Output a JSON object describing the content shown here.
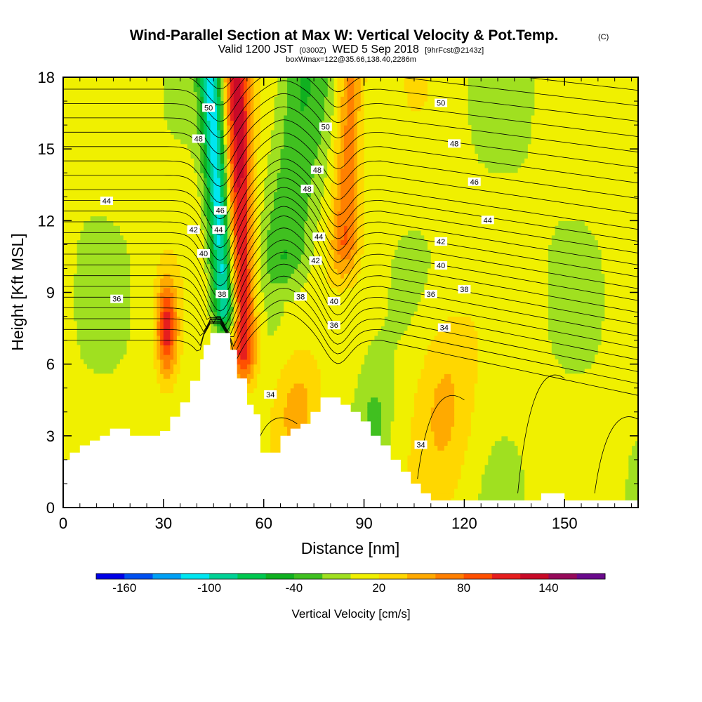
{
  "chart_data": {
    "type": "heatmap",
    "title": "Wind-Parallel Section at Max W: Vertical Velocity & Pot.Temp.",
    "title_mark": "(C)",
    "subtitle_parts": [
      "Valid 1200 JST",
      "(0300Z)",
      "WED 5 Sep 2018",
      "[9hrFcst@2143z]"
    ],
    "subtitle2": "boxWmax=122@35.66,138.40,2286m",
    "xlabel": "Distance [nm]",
    "ylabel": "Height [Kft MSL]",
    "xlim": [
      0,
      172
    ],
    "ylim": [
      0,
      18
    ],
    "xticks": [
      "0",
      "30",
      "60",
      "90",
      "120",
      "150"
    ],
    "xtick_values": [
      0,
      30,
      60,
      90,
      120,
      150
    ],
    "yticks": [
      "0",
      "3",
      "6",
      "9",
      "12",
      "15",
      "18"
    ],
    "ytick_values": [
      0,
      3,
      6,
      9,
      12,
      15,
      18
    ],
    "colorbar": {
      "title": "Vertical Velocity [cm/s]",
      "min": -180,
      "max": 180,
      "step": 20,
      "tick_labels": [
        "-160",
        "-100",
        "-40",
        "20",
        "80",
        "140"
      ],
      "tick_values": [
        -160,
        -100,
        -40,
        20,
        80,
        140
      ],
      "colors": [
        "#0000e6",
        "#0050f0",
        "#00a0f5",
        "#00e6f0",
        "#00d296",
        "#00c850",
        "#10b020",
        "#40c020",
        "#a0e020",
        "#f0f000",
        "#ffd700",
        "#ffaa00",
        "#ff8000",
        "#ff5000",
        "#e61e1e",
        "#c80a28",
        "#960a5a",
        "#6a0a8c"
      ]
    },
    "theta_contour_labels": [
      "34",
      "36",
      "38",
      "40",
      "42",
      "44",
      "46",
      "48",
      "50"
    ],
    "theta_contour_labels_shown": [
      {
        "text": "50",
        "x": 43.5,
        "y": 16.7
      },
      {
        "text": "48",
        "x": 40.5,
        "y": 15.4
      },
      {
        "text": "44",
        "x": 13,
        "y": 12.8
      },
      {
        "text": "46",
        "x": 47,
        "y": 12.4
      },
      {
        "text": "42",
        "x": 39,
        "y": 11.6
      },
      {
        "text": "44",
        "x": 46.5,
        "y": 11.6
      },
      {
        "text": "40",
        "x": 42,
        "y": 10.6
      },
      {
        "text": "38",
        "x": 47.5,
        "y": 8.9
      },
      {
        "text": "36",
        "x": 16,
        "y": 8.7
      },
      {
        "text": "50",
        "x": 78.5,
        "y": 15.9
      },
      {
        "text": "48",
        "x": 76,
        "y": 14.1
      },
      {
        "text": "48",
        "x": 73,
        "y": 13.3
      },
      {
        "text": "44",
        "x": 76.5,
        "y": 11.3
      },
      {
        "text": "42",
        "x": 75.5,
        "y": 10.3
      },
      {
        "text": "38",
        "x": 71,
        "y": 8.8
      },
      {
        "text": "40",
        "x": 81,
        "y": 8.6
      },
      {
        "text": "36",
        "x": 81,
        "y": 7.6
      },
      {
        "text": "34",
        "x": 62,
        "y": 4.7
      },
      {
        "text": "34",
        "x": 107,
        "y": 2.6
      },
      {
        "text": "50",
        "x": 113,
        "y": 16.9
      },
      {
        "text": "48",
        "x": 117,
        "y": 15.2
      },
      {
        "text": "46",
        "x": 123,
        "y": 13.6
      },
      {
        "text": "44",
        "x": 127,
        "y": 12.0
      },
      {
        "text": "42",
        "x": 113,
        "y": 11.1
      },
      {
        "text": "40",
        "x": 113,
        "y": 10.1
      },
      {
        "text": "38",
        "x": 120,
        "y": 9.1
      },
      {
        "text": "36",
        "x": 110,
        "y": 8.9
      },
      {
        "text": "34",
        "x": 114,
        "y": 7.5
      }
    ],
    "terrain_profile": {
      "x": [
        0,
        2,
        5,
        8,
        11,
        14,
        20,
        23,
        26,
        29,
        32,
        35,
        38,
        41,
        42,
        44,
        47,
        50,
        52,
        54,
        55,
        57,
        59,
        62,
        65,
        68,
        71,
        74,
        77,
        80,
        83,
        86,
        89,
        92,
        95,
        98,
        101,
        104,
        107,
        110,
        113,
        120,
        130,
        143,
        150,
        160,
        172
      ],
      "y": [
        2.0,
        2.3,
        2.6,
        2.8,
        3.0,
        3.3,
        3.0,
        3.0,
        3.0,
        3.2,
        3.8,
        4.4,
        5.3,
        6.2,
        6.8,
        7.3,
        7.3,
        6.6,
        5.4,
        5.4,
        4.3,
        3.9,
        2.3,
        2.3,
        3.0,
        3.3,
        3.5,
        4.0,
        4.6,
        4.6,
        4.3,
        4.0,
        3.6,
        3.0,
        2.6,
        2.0,
        1.5,
        1.0,
        0.6,
        0.3,
        0.3,
        0.3,
        0.3,
        0.6,
        0.3,
        0.3,
        0.3
      ]
    },
    "vertical_velocity_features": [
      {
        "kind": "updraft",
        "max_value": 120,
        "x_bottom": 54,
        "y_bottom": 5.5,
        "x_top": 52,
        "y_top": 18,
        "half_width_nm": 4
      },
      {
        "kind": "downdraft",
        "min_value": -120,
        "x_bottom": 49,
        "y_bottom": 7.3,
        "x_top": 44,
        "y_top": 18,
        "half_width_nm": 3.5
      },
      {
        "kind": "downdraft",
        "min_value": -40,
        "x_bottom": 66,
        "y_bottom": 9.5,
        "x_top": 72,
        "y_top": 18,
        "half_width_nm": 7
      },
      {
        "kind": "updraft",
        "max_value": 70,
        "x_bottom": 84,
        "y_bottom": 10,
        "x_top": 86,
        "y_top": 18,
        "half_width_nm": 4
      },
      {
        "kind": "updraft",
        "max_value": 100,
        "x": 31,
        "y": 7.5,
        "rx": 3,
        "ry": 2
      },
      {
        "kind": "updraft",
        "max_value": 40,
        "x": 114,
        "y": 4.5,
        "rx": 9,
        "ry": 4
      },
      {
        "kind": "updraft",
        "max_value": 45,
        "x": 70,
        "y": 4.0,
        "rx": 7,
        "ry": 2.5
      },
      {
        "kind": "downdraft",
        "min_value": -30,
        "x": 93,
        "y": 3.5,
        "rx": 5,
        "ry": 3
      }
    ],
    "grid": false
  }
}
